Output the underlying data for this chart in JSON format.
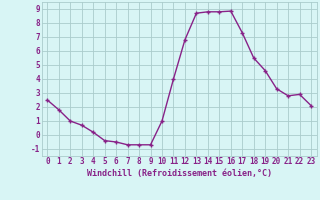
{
  "x": [
    0,
    1,
    2,
    3,
    4,
    5,
    6,
    7,
    8,
    9,
    10,
    11,
    12,
    13,
    14,
    15,
    16,
    17,
    18,
    19,
    20,
    21,
    22,
    23
  ],
  "y": [
    2.5,
    1.8,
    1.0,
    0.7,
    0.2,
    -0.4,
    -0.5,
    -0.7,
    -0.7,
    -0.7,
    1.0,
    4.0,
    6.8,
    8.7,
    8.8,
    8.8,
    8.85,
    7.3,
    5.5,
    4.6,
    3.3,
    2.8,
    2.9,
    2.1
  ],
  "line_color": "#882288",
  "marker": "+",
  "markersize": 3.5,
  "linewidth": 1.0,
  "markeredgewidth": 1.0,
  "xlabel": "Windchill (Refroidissement éolien,°C)",
  "xlabel_fontsize": 6.0,
  "bg_color": "#d8f5f5",
  "grid_color": "#aacccc",
  "ytick_labels": [
    "-1",
    "0",
    "1",
    "2",
    "3",
    "4",
    "5",
    "6",
    "7",
    "8",
    "9"
  ],
  "yticks": [
    -1,
    0,
    1,
    2,
    3,
    4,
    5,
    6,
    7,
    8,
    9
  ],
  "xtick_labels": [
    "0",
    "1",
    "2",
    "3",
    "4",
    "5",
    "6",
    "7",
    "8",
    "9",
    "10",
    "11",
    "12",
    "13",
    "14",
    "15",
    "16",
    "17",
    "18",
    "19",
    "20",
    "21",
    "22",
    "23"
  ],
  "xlim": [
    -0.5,
    23.5
  ],
  "ylim": [
    -1.5,
    9.5
  ],
  "tick_fontsize": 5.5,
  "axis_label_color": "#882288"
}
